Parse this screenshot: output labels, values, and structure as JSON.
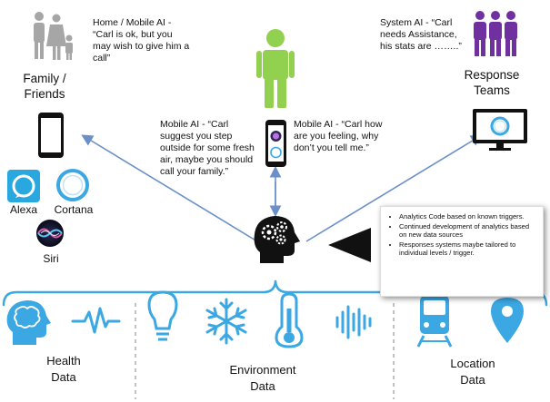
{
  "quotes": {
    "home": "Home / Mobile AI - “Carl is ok, but you may wish to give him a call”",
    "system": "System AI - “Carl needs Assistance, his stats are ……..”",
    "mobile_left": "Mobile AI - “Carl suggest you step outside for some fresh air, maybe you should call your family.”",
    "mobile_right": "Mobile AI - “Carl how are you feeling, why don’t you tell me.”"
  },
  "groups": {
    "family": "Family / Friends",
    "response": "Response Teams"
  },
  "assistants": {
    "alexa": "Alexa",
    "cortana": "Cortana",
    "siri": "Siri"
  },
  "notes": [
    "Analytics Code based on known triggers.",
    "Continued development of analytics based on new data sources",
    "Responses systems maybe tailored to individual levels / trigger."
  ],
  "categories": {
    "health": "Health Data",
    "environment": "Environment Data",
    "location": "Location Data"
  },
  "icons": [
    "family-icon",
    "person-icon",
    "team-icon",
    "smartphone-icon",
    "monitor-icon",
    "alexa-icon",
    "cortana-icon",
    "siri-icon",
    "ai-head-icon",
    "pointer-triangle-icon",
    "brain-icon",
    "heartbeat-icon",
    "lightbulb-icon",
    "snowflake-icon",
    "thermometer-icon",
    "sound-wave-icon",
    "train-icon",
    "map-pin-icon"
  ],
  "colors": {
    "accent_blue": "#3ba7e3",
    "arrow_blue": "#6b8fc9",
    "person_green": "#92d050",
    "team_purple": "#7030a0",
    "family_gray": "#a6a6a6",
    "alexa_blue": "#29a8e0"
  }
}
